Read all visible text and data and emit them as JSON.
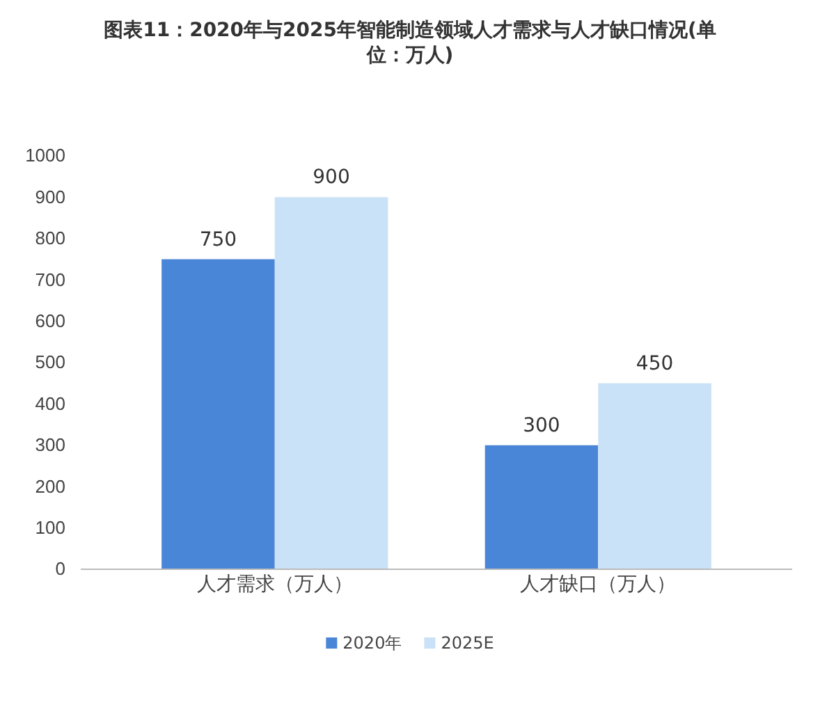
{
  "chart_data": {
    "type": "bar",
    "title": "图表11：2020年与2025年智能制造领域人才需求与人才缺口情况(单位：万人)",
    "categories": [
      "人才需求（万人）",
      "人才缺口（万人）"
    ],
    "series": [
      {
        "name": "2020年",
        "color": "#4a86d8",
        "values": [
          750,
          300
        ]
      },
      {
        "name": "2025E",
        "color": "#c9e2f8",
        "values": [
          900,
          450
        ]
      }
    ],
    "ylim": [
      0,
      1000
    ],
    "yticks": [
      0,
      100,
      200,
      300,
      400,
      500,
      600,
      700,
      800,
      900,
      1000
    ],
    "data_labels": true,
    "legend": "bottom",
    "grid": false
  }
}
